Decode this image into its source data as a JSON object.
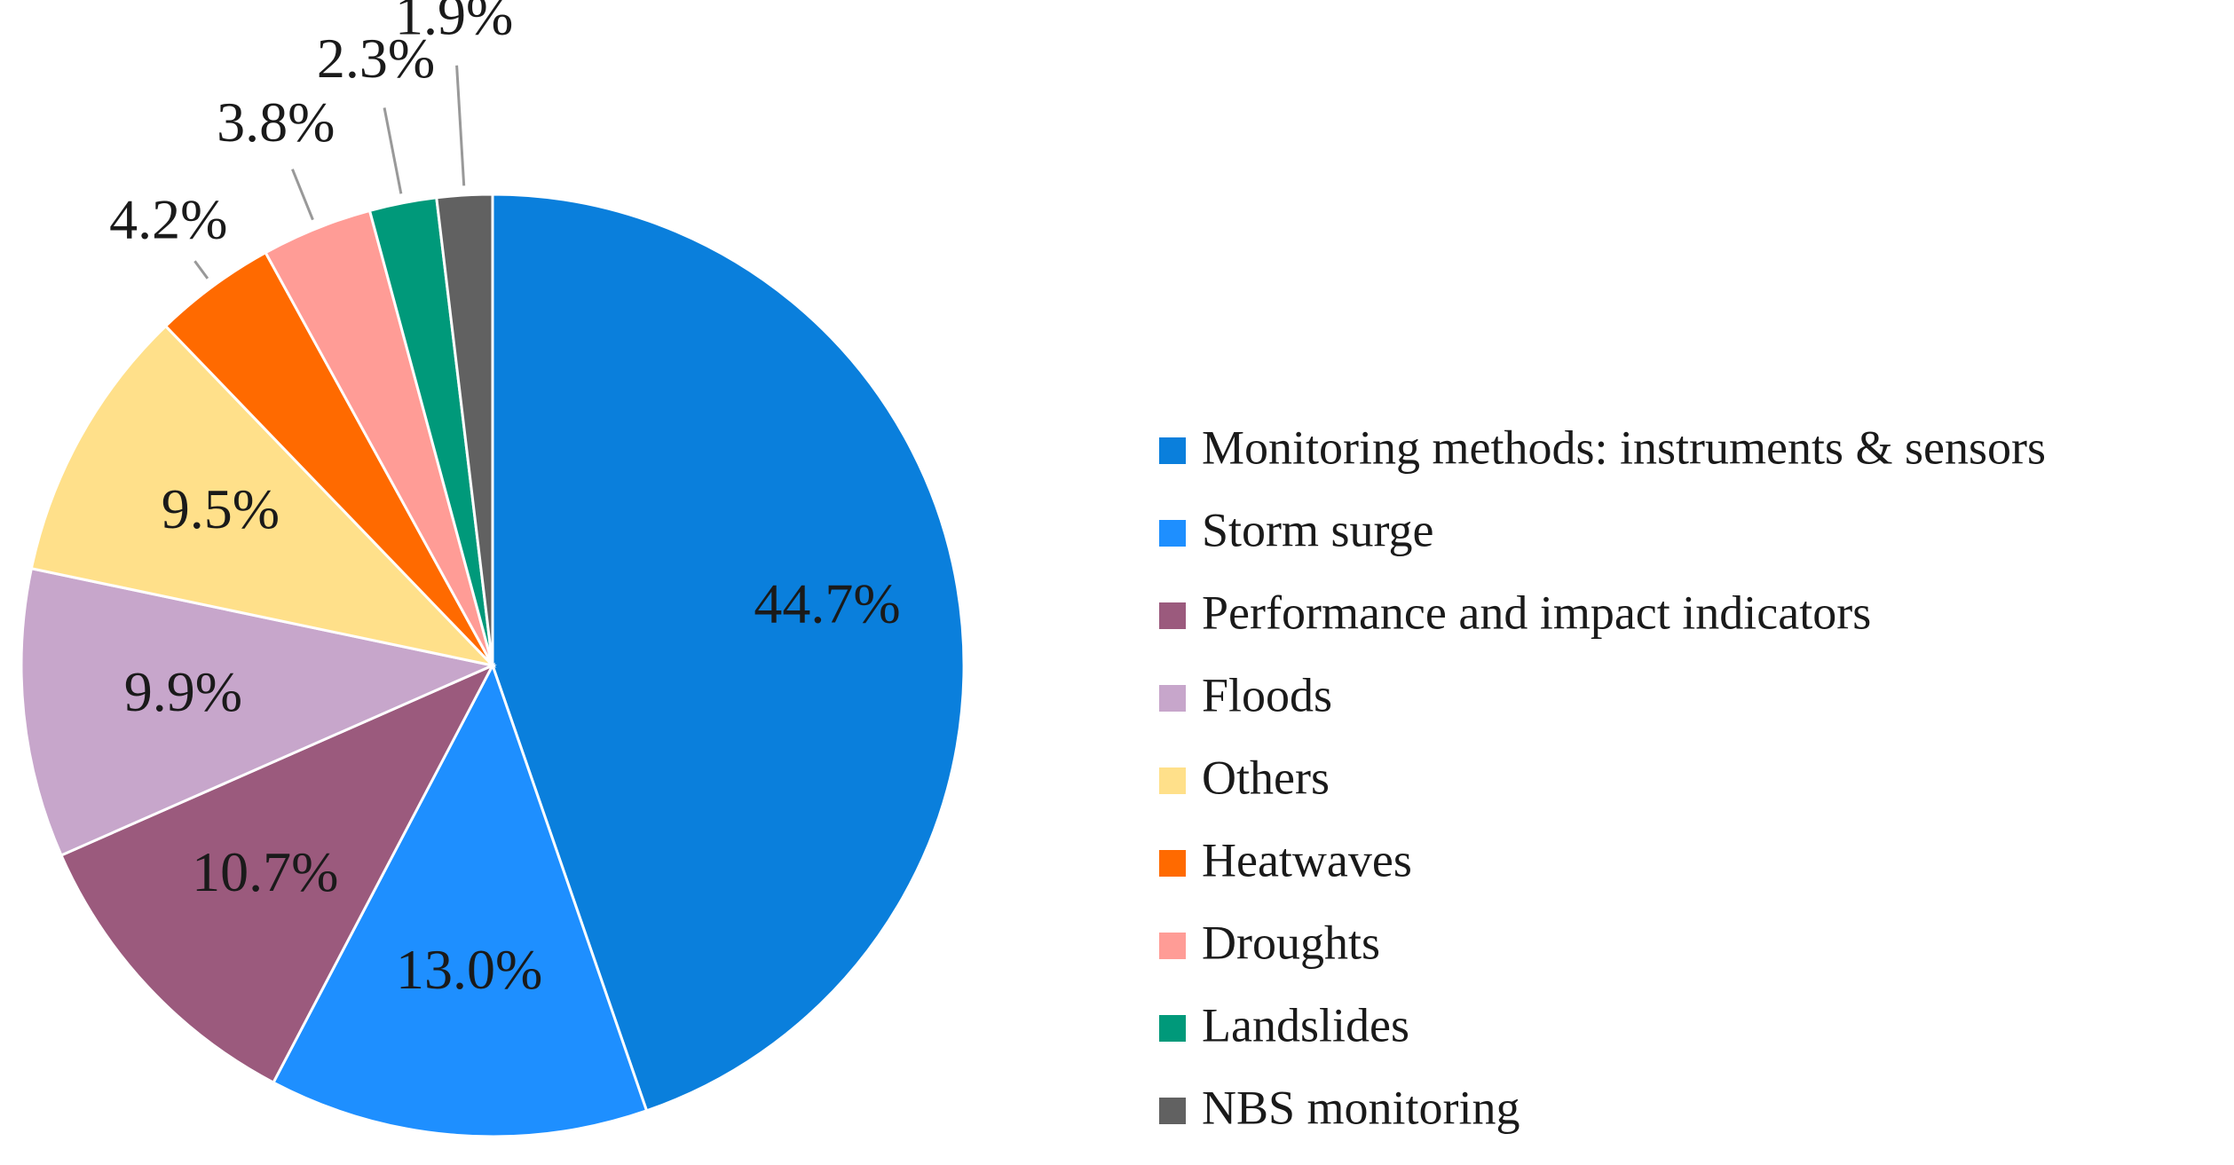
{
  "chart_data": {
    "type": "pie",
    "categories": [
      "Monitoring methods: instruments & sensors",
      "Storm surge",
      "Performance and impact  indicators",
      "Floods",
      "Others",
      "Heatwaves",
      "Droughts",
      "Landslides",
      "NBS monitoring"
    ],
    "values": [
      44.7,
      13.0,
      10.7,
      9.9,
      9.5,
      4.2,
      3.8,
      2.3,
      1.9
    ],
    "value_labels": [
      "44.7%",
      "13.0%",
      "10.7%",
      "9.9%",
      "9.5%",
      "4.2%",
      "3.8%",
      "2.3%",
      "1.9%"
    ],
    "colors": [
      "#0a7fdc",
      "#1e8fff",
      "#9b5a7d",
      "#c7a6cb",
      "#ffe08a",
      "#ff6a00",
      "#ff9c96",
      "#00997a",
      "#616161"
    ],
    "legend": "right"
  }
}
